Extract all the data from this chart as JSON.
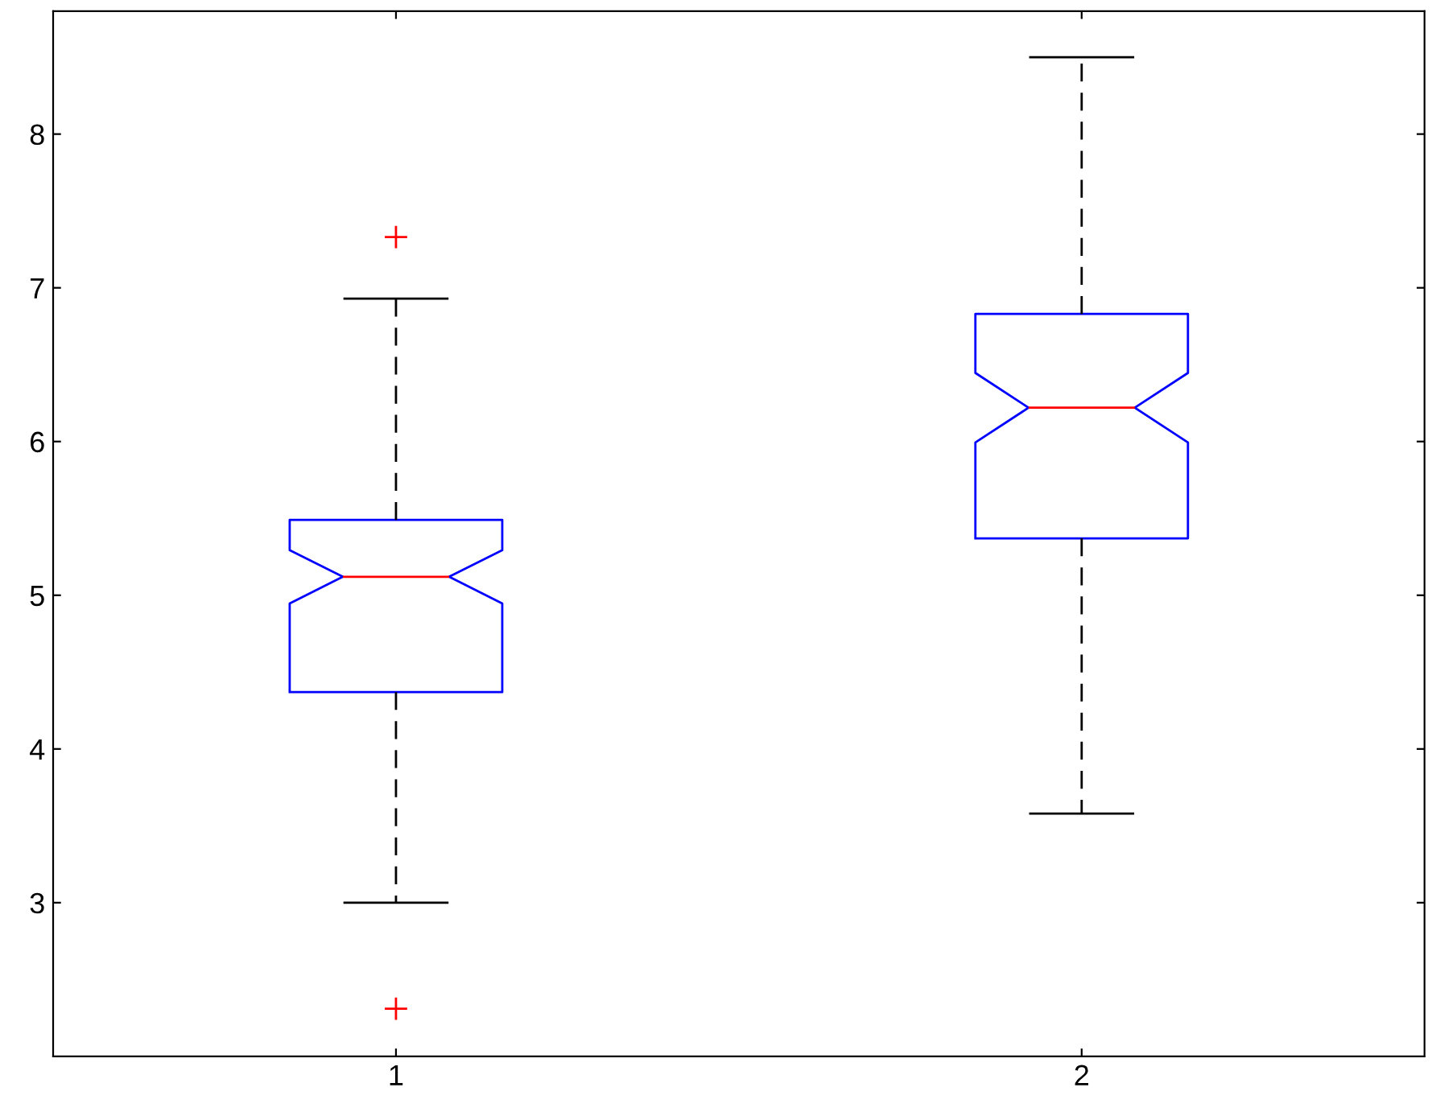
{
  "chart_data": {
    "type": "box",
    "categories": [
      "1",
      "2"
    ],
    "color": "#0000ff",
    "boxes": [
      {
        "low": 3.0,
        "q1": 4.37,
        "median": 5.12,
        "q3": 5.49,
        "high": 6.93,
        "outliers": [
          7.33,
          2.31
        ]
      },
      {
        "low": 3.58,
        "q1": 5.37,
        "median": 6.22,
        "q3": 6.83,
        "high": 8.5
      }
    ],
    "ylim": [
      2,
      8.8
    ],
    "yticks": [
      3,
      4,
      5,
      6,
      7,
      8
    ],
    "grid": false
  }
}
